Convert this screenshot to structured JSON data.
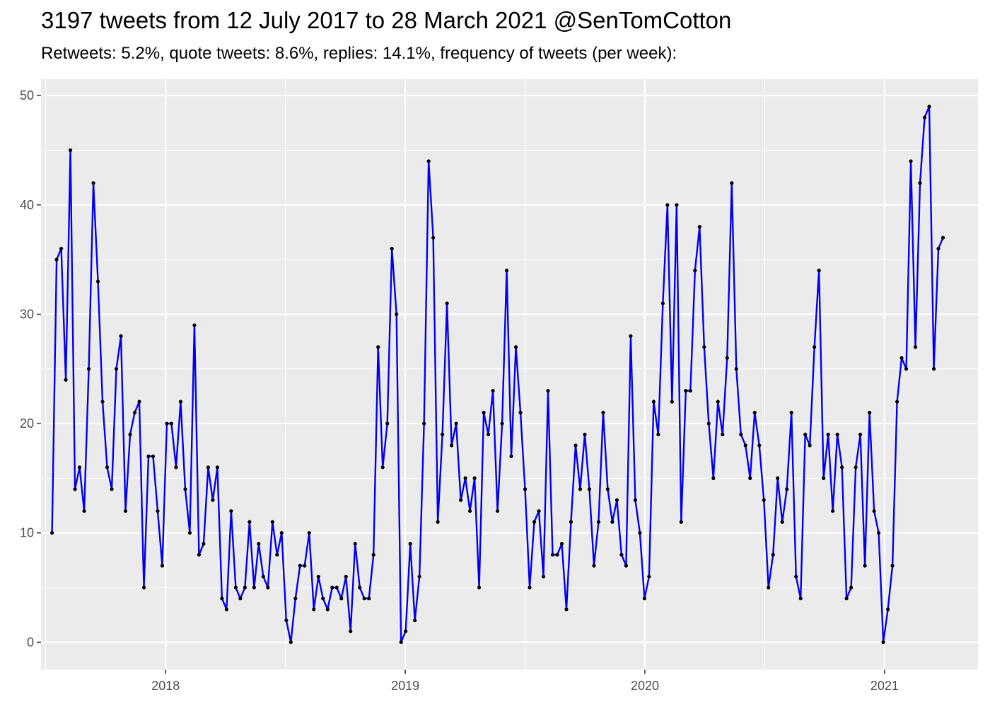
{
  "chart_data": {
    "type": "line",
    "title": "3197 tweets from 12 July 2017 to 28 March 2021 @SenTomCotton",
    "subtitle": "Retweets: 5.2%, quote tweets: 8.6%, replies: 14.1%, frequency of tweets (per week):",
    "xlabel": "",
    "ylabel": "",
    "x_range": [
      2017.48,
      2021.39
    ],
    "ylim": [
      -2.5,
      51.5
    ],
    "x_ticks": [
      2018,
      2019,
      2020,
      2021
    ],
    "x_tick_labels": [
      "2018",
      "2019",
      "2020",
      "2021"
    ],
    "y_ticks": [
      0,
      10,
      20,
      30,
      40,
      50
    ],
    "y_tick_labels": [
      "0",
      "10",
      "20",
      "30",
      "40",
      "50"
    ],
    "grid": true,
    "legend": "none",
    "colors": {
      "panel": "#ebebeb",
      "grid": "#ffffff",
      "line": "#0000ee",
      "point": "#000000"
    },
    "series": [
      {
        "values": [
          10,
          35,
          36,
          24,
          45,
          14,
          16,
          12,
          25,
          42,
          33,
          22,
          16,
          14,
          25,
          28,
          12,
          19,
          21,
          22,
          5,
          17,
          17,
          12,
          7,
          20,
          20,
          16,
          22,
          14,
          10,
          29,
          8,
          9,
          16,
          13,
          16,
          4,
          3,
          12,
          5,
          4,
          5,
          11,
          5,
          9,
          6,
          5,
          11,
          8,
          10,
          2,
          0,
          4,
          7,
          7,
          10,
          3,
          6,
          4,
          3,
          5,
          5,
          4,
          6,
          1,
          9,
          5,
          4,
          4,
          8,
          27,
          16,
          20,
          36,
          30,
          0,
          1,
          9,
          2,
          6,
          20,
          44,
          37,
          11,
          19,
          31,
          18,
          20,
          13,
          15,
          12,
          15,
          5,
          21,
          19,
          23,
          12,
          20,
          34,
          17,
          27,
          21,
          14,
          5,
          11,
          12,
          6,
          23,
          8,
          8,
          9,
          3,
          11,
          18,
          14,
          19,
          14,
          7,
          11,
          21,
          14,
          11,
          13,
          8,
          7,
          28,
          13,
          10,
          4,
          6,
          22,
          19,
          31,
          40,
          22,
          40,
          11,
          23,
          23,
          34,
          38,
          27,
          20,
          15,
          22,
          19,
          26,
          42,
          25,
          19,
          18,
          15,
          21,
          18,
          13,
          5,
          8,
          15,
          11,
          14,
          21,
          6,
          4,
          19,
          18,
          27,
          34,
          15,
          19,
          12,
          19,
          16,
          4,
          5,
          16,
          19,
          7,
          21,
          12,
          10,
          0,
          3,
          7,
          22,
          26,
          25,
          44,
          27,
          42,
          48,
          49,
          25,
          36,
          37
        ]
      }
    ]
  }
}
